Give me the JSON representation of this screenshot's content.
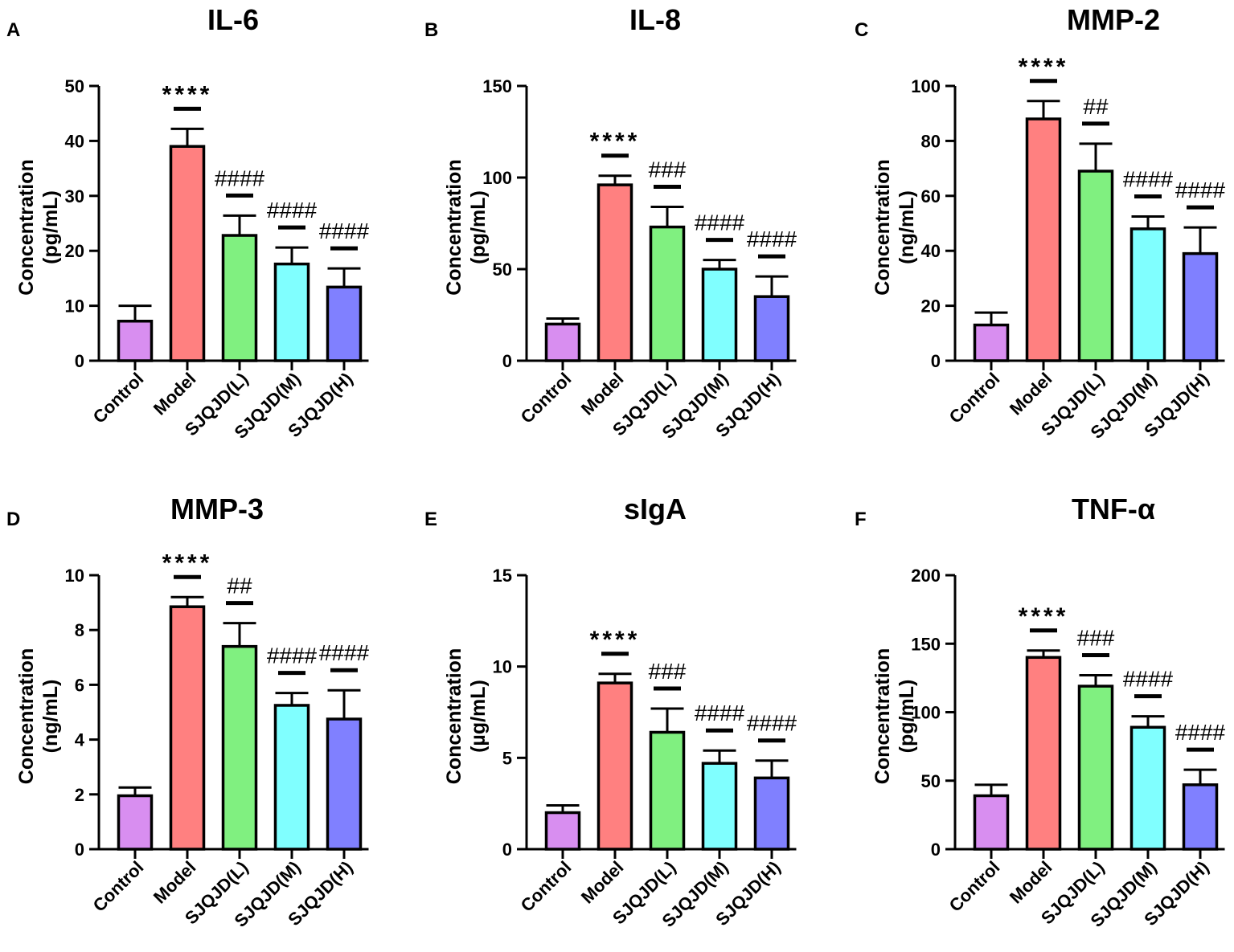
{
  "colors": {
    "Control": "#d88ef0",
    "Model": "#ff8080",
    "SJQJD(L)": "#80f080",
    "SJQJD(M)": "#80ffff",
    "SJQJD(H)": "#8080ff",
    "axis": "#000000"
  },
  "chart_data": [
    {
      "panel": "A",
      "type": "bar",
      "title": "IL-6",
      "ylabel": "Concentration",
      "ylabel_unit": "(pg/mL)",
      "categories": [
        "Control",
        "Model",
        "SJQJD(L)",
        "SJQJD(M)",
        "SJQJD(H)"
      ],
      "values": [
        7.2,
        39,
        22.8,
        17.6,
        13.4
      ],
      "errors": [
        2.8,
        3.2,
        3.6,
        3.0,
        3.4
      ],
      "significance": [
        "",
        "****",
        "####",
        "####",
        "####"
      ],
      "ylim": [
        0,
        50
      ],
      "yticks": [
        0,
        10,
        20,
        30,
        40,
        50
      ]
    },
    {
      "panel": "B",
      "type": "bar",
      "title": "IL-8",
      "ylabel": "Concentration",
      "ylabel_unit": "(pg/mL)",
      "categories": [
        "Control",
        "Model",
        "SJQJD(L)",
        "SJQJD(M)",
        "SJQJD(H)"
      ],
      "values": [
        20,
        96,
        73,
        50,
        35
      ],
      "errors": [
        3,
        5,
        11,
        5,
        11
      ],
      "significance": [
        "",
        "****",
        "###",
        "####",
        "####"
      ],
      "ylim": [
        0,
        150
      ],
      "yticks": [
        0,
        50,
        100,
        150
      ]
    },
    {
      "panel": "C",
      "type": "bar",
      "title": "MMP-2",
      "ylabel": "Concentration",
      "ylabel_unit": "(ng/mL)",
      "categories": [
        "Control",
        "Model",
        "SJQJD(L)",
        "SJQJD(M)",
        "SJQJD(H)"
      ],
      "values": [
        13,
        88,
        69,
        48,
        39
      ],
      "errors": [
        4.5,
        6.5,
        10,
        4.5,
        9.5
      ],
      "significance": [
        "",
        "****",
        "##",
        "####",
        "####"
      ],
      "ylim": [
        0,
        100
      ],
      "yticks": [
        0,
        20,
        40,
        60,
        80,
        100
      ]
    },
    {
      "panel": "D",
      "type": "bar",
      "title": "MMP-3",
      "ylabel": "Concentration",
      "ylabel_unit": "(ng/mL)",
      "categories": [
        "Control",
        "Model",
        "SJQJD(L)",
        "SJQJD(M)",
        "SJQJD(H)"
      ],
      "values": [
        1.95,
        8.85,
        7.4,
        5.25,
        4.75
      ],
      "errors": [
        0.3,
        0.35,
        0.85,
        0.45,
        1.05
      ],
      "significance": [
        "",
        "****",
        "##",
        "####",
        "####"
      ],
      "ylim": [
        0,
        10
      ],
      "yticks": [
        0,
        2,
        4,
        6,
        8,
        10
      ]
    },
    {
      "panel": "E",
      "type": "bar",
      "title": "sIgA",
      "ylabel": "Concentration",
      "ylabel_unit": "(µg/mL)",
      "categories": [
        "Control",
        "Model",
        "SJQJD(L)",
        "SJQJD(M)",
        "SJQJD(H)"
      ],
      "values": [
        2.0,
        9.1,
        6.4,
        4.7,
        3.9
      ],
      "errors": [
        0.4,
        0.5,
        1.3,
        0.7,
        0.95
      ],
      "significance": [
        "",
        "****",
        "###",
        "####",
        "####"
      ],
      "ylim": [
        0,
        15
      ],
      "yticks": [
        0,
        5,
        10,
        15
      ]
    },
    {
      "panel": "F",
      "type": "bar",
      "title": "TNF-α",
      "ylabel": "Concentration",
      "ylabel_unit": "(pg/mL)",
      "categories": [
        "Control",
        "Model",
        "SJQJD(L)",
        "SJQJD(M)",
        "SJQJD(H)"
      ],
      "values": [
        39,
        140,
        119,
        89,
        47
      ],
      "errors": [
        8,
        5,
        8,
        8,
        11
      ],
      "significance": [
        "",
        "****",
        "###",
        "####",
        "####"
      ],
      "ylim": [
        0,
        200
      ],
      "yticks": [
        0,
        50,
        100,
        150,
        200
      ]
    }
  ]
}
